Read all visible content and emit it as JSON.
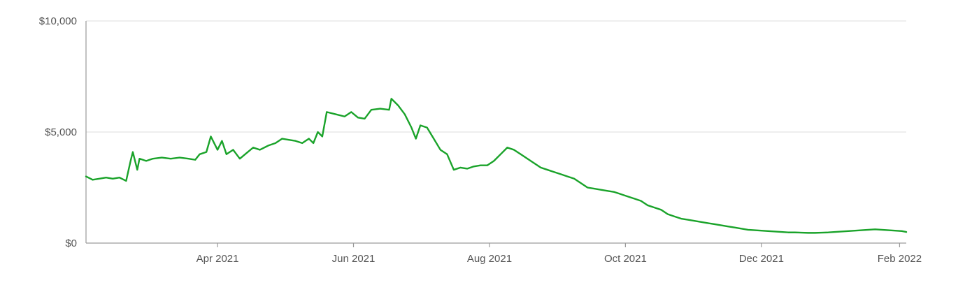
{
  "chart_data": {
    "type": "line",
    "title": "",
    "xlabel": "",
    "ylabel": "",
    "ylim": [
      0,
      10000
    ],
    "xlim": [
      "2021-02-01",
      "2022-02-04"
    ],
    "grid": true,
    "y_ticks": [
      {
        "value": 0,
        "label": "$0"
      },
      {
        "value": 5000,
        "label": "$5,000"
      },
      {
        "value": 10000,
        "label": "$10,000"
      }
    ],
    "x_ticks": [
      {
        "date": "2021-04-01",
        "label": "Apr 2021"
      },
      {
        "date": "2021-06-01",
        "label": "Jun 2021"
      },
      {
        "date": "2021-08-01",
        "label": "Aug 2021"
      },
      {
        "date": "2021-10-01",
        "label": "Oct 2021"
      },
      {
        "date": "2021-12-01",
        "label": "Dec 2021"
      },
      {
        "date": "2022-02-01",
        "label": "Feb 2022"
      }
    ],
    "colors": {
      "line": "#1aa32a",
      "grid": "#dedede",
      "axis": "#9a9a9a",
      "text": "#555555"
    },
    "series": [
      {
        "points": [
          [
            "2021-02-01",
            3000
          ],
          [
            "2021-02-04",
            2850
          ],
          [
            "2021-02-07",
            2900
          ],
          [
            "2021-02-10",
            2950
          ],
          [
            "2021-02-13",
            2900
          ],
          [
            "2021-02-16",
            2950
          ],
          [
            "2021-02-19",
            2800
          ],
          [
            "2021-02-21",
            3700
          ],
          [
            "2021-02-22",
            4100
          ],
          [
            "2021-02-24",
            3300
          ],
          [
            "2021-02-25",
            3800
          ],
          [
            "2021-02-28",
            3700
          ],
          [
            "2021-03-03",
            3800
          ],
          [
            "2021-03-07",
            3850
          ],
          [
            "2021-03-11",
            3800
          ],
          [
            "2021-03-15",
            3850
          ],
          [
            "2021-03-19",
            3800
          ],
          [
            "2021-03-22",
            3750
          ],
          [
            "2021-03-24",
            4000
          ],
          [
            "2021-03-27",
            4100
          ],
          [
            "2021-03-29",
            4800
          ],
          [
            "2021-04-01",
            4200
          ],
          [
            "2021-04-03",
            4600
          ],
          [
            "2021-04-05",
            4000
          ],
          [
            "2021-04-08",
            4200
          ],
          [
            "2021-04-11",
            3800
          ],
          [
            "2021-04-14",
            4050
          ],
          [
            "2021-04-17",
            4300
          ],
          [
            "2021-04-20",
            4200
          ],
          [
            "2021-04-24",
            4400
          ],
          [
            "2021-04-27",
            4500
          ],
          [
            "2021-04-30",
            4700
          ],
          [
            "2021-05-03",
            4650
          ],
          [
            "2021-05-06",
            4600
          ],
          [
            "2021-05-09",
            4500
          ],
          [
            "2021-05-12",
            4700
          ],
          [
            "2021-05-14",
            4500
          ],
          [
            "2021-05-16",
            5000
          ],
          [
            "2021-05-18",
            4800
          ],
          [
            "2021-05-20",
            5900
          ],
          [
            "2021-05-24",
            5800
          ],
          [
            "2021-05-28",
            5700
          ],
          [
            "2021-05-31",
            5900
          ],
          [
            "2021-06-03",
            5650
          ],
          [
            "2021-06-06",
            5600
          ],
          [
            "2021-06-09",
            6000
          ],
          [
            "2021-06-13",
            6050
          ],
          [
            "2021-06-17",
            6000
          ],
          [
            "2021-06-18",
            6500
          ],
          [
            "2021-06-21",
            6200
          ],
          [
            "2021-06-24",
            5800
          ],
          [
            "2021-06-27",
            5200
          ],
          [
            "2021-06-29",
            4700
          ],
          [
            "2021-07-01",
            5300
          ],
          [
            "2021-07-04",
            5200
          ],
          [
            "2021-07-07",
            4700
          ],
          [
            "2021-07-10",
            4200
          ],
          [
            "2021-07-13",
            4000
          ],
          [
            "2021-07-16",
            3300
          ],
          [
            "2021-07-19",
            3400
          ],
          [
            "2021-07-22",
            3350
          ],
          [
            "2021-07-25",
            3450
          ],
          [
            "2021-07-28",
            3500
          ],
          [
            "2021-07-31",
            3500
          ],
          [
            "2021-08-03",
            3700
          ],
          [
            "2021-08-06",
            4000
          ],
          [
            "2021-08-09",
            4300
          ],
          [
            "2021-08-12",
            4200
          ],
          [
            "2021-08-15",
            4000
          ],
          [
            "2021-08-18",
            3800
          ],
          [
            "2021-08-21",
            3600
          ],
          [
            "2021-08-24",
            3400
          ],
          [
            "2021-08-27",
            3300
          ],
          [
            "2021-08-30",
            3200
          ],
          [
            "2021-09-02",
            3100
          ],
          [
            "2021-09-05",
            3000
          ],
          [
            "2021-09-08",
            2900
          ],
          [
            "2021-09-11",
            2700
          ],
          [
            "2021-09-14",
            2500
          ],
          [
            "2021-09-17",
            2450
          ],
          [
            "2021-09-20",
            2400
          ],
          [
            "2021-09-23",
            2350
          ],
          [
            "2021-09-26",
            2300
          ],
          [
            "2021-09-29",
            2200
          ],
          [
            "2021-10-02",
            2100
          ],
          [
            "2021-10-05",
            2000
          ],
          [
            "2021-10-08",
            1900
          ],
          [
            "2021-10-11",
            1700
          ],
          [
            "2021-10-14",
            1600
          ],
          [
            "2021-10-17",
            1500
          ],
          [
            "2021-10-20",
            1300
          ],
          [
            "2021-10-23",
            1200
          ],
          [
            "2021-10-26",
            1100
          ],
          [
            "2021-10-29",
            1050
          ],
          [
            "2021-11-01",
            1000
          ],
          [
            "2021-11-04",
            950
          ],
          [
            "2021-11-07",
            900
          ],
          [
            "2021-11-10",
            850
          ],
          [
            "2021-11-13",
            800
          ],
          [
            "2021-11-16",
            750
          ],
          [
            "2021-11-19",
            700
          ],
          [
            "2021-11-22",
            650
          ],
          [
            "2021-11-25",
            600
          ],
          [
            "2021-11-28",
            580
          ],
          [
            "2021-12-01",
            560
          ],
          [
            "2021-12-04",
            540
          ],
          [
            "2021-12-07",
            520
          ],
          [
            "2021-12-10",
            500
          ],
          [
            "2021-12-13",
            480
          ],
          [
            "2021-12-16",
            480
          ],
          [
            "2021-12-19",
            470
          ],
          [
            "2021-12-22",
            460
          ],
          [
            "2021-12-25",
            460
          ],
          [
            "2021-12-28",
            470
          ],
          [
            "2021-12-31",
            480
          ],
          [
            "2022-01-03",
            500
          ],
          [
            "2022-01-06",
            520
          ],
          [
            "2022-01-09",
            540
          ],
          [
            "2022-01-12",
            560
          ],
          [
            "2022-01-15",
            580
          ],
          [
            "2022-01-18",
            600
          ],
          [
            "2022-01-21",
            620
          ],
          [
            "2022-01-24",
            600
          ],
          [
            "2022-01-27",
            580
          ],
          [
            "2022-01-30",
            560
          ],
          [
            "2022-02-02",
            540
          ],
          [
            "2022-02-04",
            500
          ]
        ]
      }
    ]
  }
}
